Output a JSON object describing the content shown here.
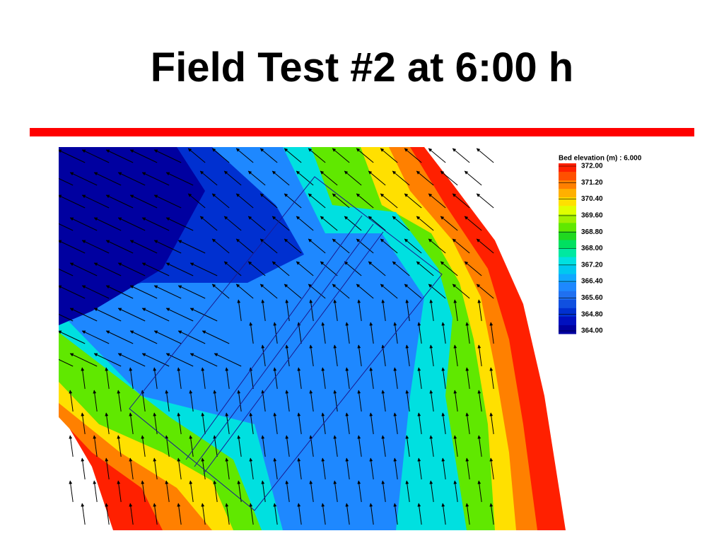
{
  "title": "Field Test #2 at 6:00 h",
  "legend": {
    "title": "Bed elevation (m) : 6.000",
    "labels": [
      "372.00",
      "371.20",
      "370.40",
      "369.60",
      "368.80",
      "368.00",
      "367.20",
      "366.40",
      "365.60",
      "364.80",
      "364.00"
    ],
    "colors": [
      "#ff2000",
      "#ff5000",
      "#ff8000",
      "#ffb000",
      "#ffe000",
      "#e0ff00",
      "#a0f000",
      "#60e800",
      "#20d820",
      "#00e060",
      "#00e8a0",
      "#00e0e0",
      "#00c8f0",
      "#10a8ff",
      "#1e88ff",
      "#2070f0",
      "#1050e0",
      "#0030d0",
      "#0010c0",
      "#0000a0"
    ]
  }
}
